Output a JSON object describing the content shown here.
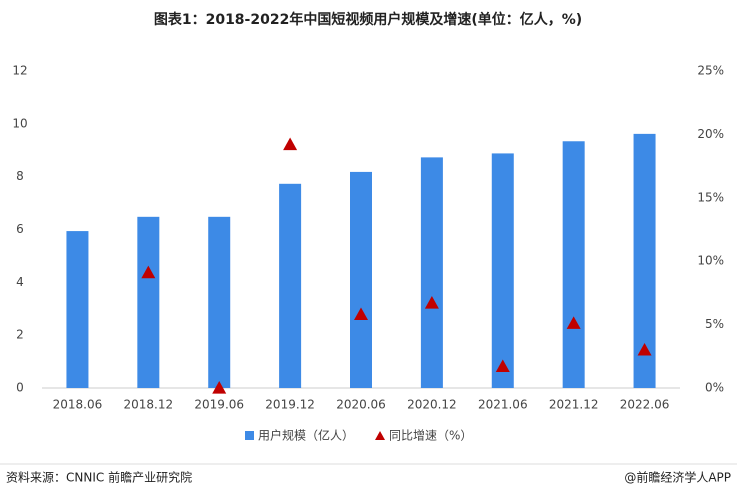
{
  "chart_data": {
    "type": "bar",
    "title": "图表1：2018-2022年中国短视频用户规模及增速(单位：亿人，%)",
    "categories": [
      "2018.06",
      "2018.12",
      "2019.06",
      "2019.12",
      "2020.06",
      "2020.12",
      "2021.06",
      "2021.12",
      "2022.06"
    ],
    "series": [
      {
        "name": "用户规模（亿人）",
        "type": "bar",
        "color": "#3d8ae6",
        "values": [
          5.94,
          6.48,
          6.48,
          7.73,
          8.18,
          8.73,
          8.88,
          9.34,
          9.62
        ]
      },
      {
        "name": "同比增速（%）",
        "type": "scatter",
        "axis": "y2",
        "color": "#c00000",
        "values": [
          null,
          9.1,
          0,
          19.2,
          5.8,
          6.7,
          1.7,
          5.1,
          3.0
        ]
      }
    ],
    "ylim": [
      0,
      12
    ],
    "yticks": [
      0,
      2,
      4,
      6,
      8,
      10,
      12
    ],
    "y2lim": [
      0,
      25
    ],
    "y2ticks": [
      {
        "value": 0,
        "label": "0%"
      },
      {
        "value": 5,
        "label": "5%"
      },
      {
        "value": 10,
        "label": "10%"
      },
      {
        "value": 15,
        "label": "15%"
      },
      {
        "value": 20,
        "label": "20%"
      },
      {
        "value": 25,
        "label": "25%"
      }
    ],
    "legend": "bottom",
    "source": "资料来源：CNNIC 前瞻产业研究院",
    "credit": "@前瞻经济学人APP"
  }
}
